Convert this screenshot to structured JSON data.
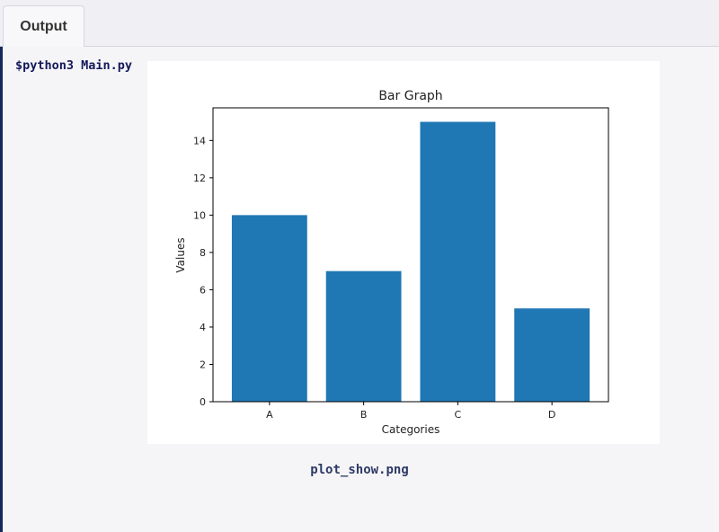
{
  "tabs": [
    {
      "label": "Output",
      "active": true
    }
  ],
  "console": {
    "command": "$python3 Main.py"
  },
  "caption": "plot_show.png",
  "chart_data": {
    "type": "bar",
    "title": "Bar Graph",
    "xlabel": "Categories",
    "ylabel": "Values",
    "categories": [
      "A",
      "B",
      "C",
      "D"
    ],
    "values": [
      10,
      7,
      15,
      5
    ],
    "ylim": [
      0,
      15.75
    ],
    "yticks": [
      "0",
      "2",
      "4",
      "6",
      "8",
      "10",
      "12",
      "14"
    ],
    "bar_color": "#1f77b4",
    "grid": false
  }
}
